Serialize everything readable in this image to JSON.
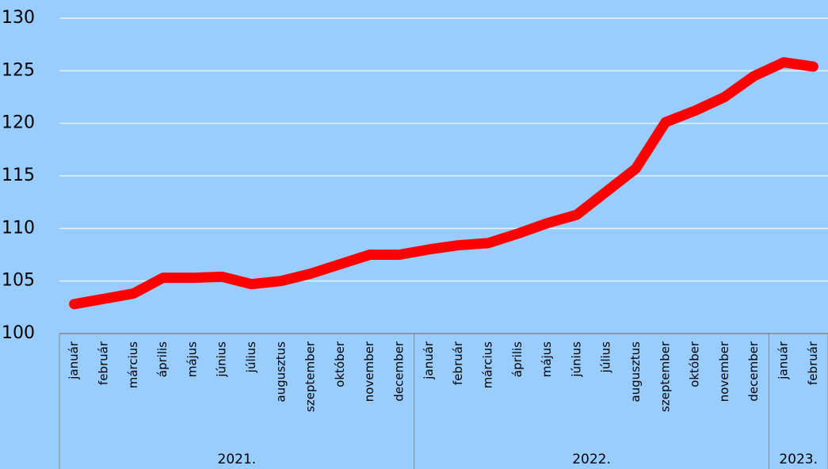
{
  "chart_data": {
    "type": "line",
    "categories": [
      "január",
      "február",
      "március",
      "április",
      "május",
      "június",
      "július",
      "augusztus",
      "szeptember",
      "október",
      "november",
      "december",
      "január",
      "február",
      "március",
      "április",
      "május",
      "június",
      "július",
      "augusztus",
      "szeptember",
      "október",
      "november",
      "december",
      "január",
      "február"
    ],
    "category_groups": [
      {
        "label": "2021.",
        "span": 12
      },
      {
        "label": "2022.",
        "span": 12
      },
      {
        "label": "2023.",
        "span": 2
      }
    ],
    "series": [
      {
        "color": "#ff0000",
        "values": [
          102.8,
          103.3,
          103.8,
          105.3,
          105.3,
          105.4,
          104.7,
          105.0,
          105.7,
          106.6,
          107.5,
          107.5,
          108.0,
          108.4,
          108.6,
          109.5,
          110.5,
          111.3,
          113.5,
          115.7,
          120.1,
          121.2,
          122.5,
          124.5,
          125.8,
          125.4
        ]
      }
    ],
    "ylim": [
      100,
      130
    ],
    "yticks": [
      100,
      105,
      110,
      115,
      120,
      125,
      130
    ],
    "grid": true
  }
}
